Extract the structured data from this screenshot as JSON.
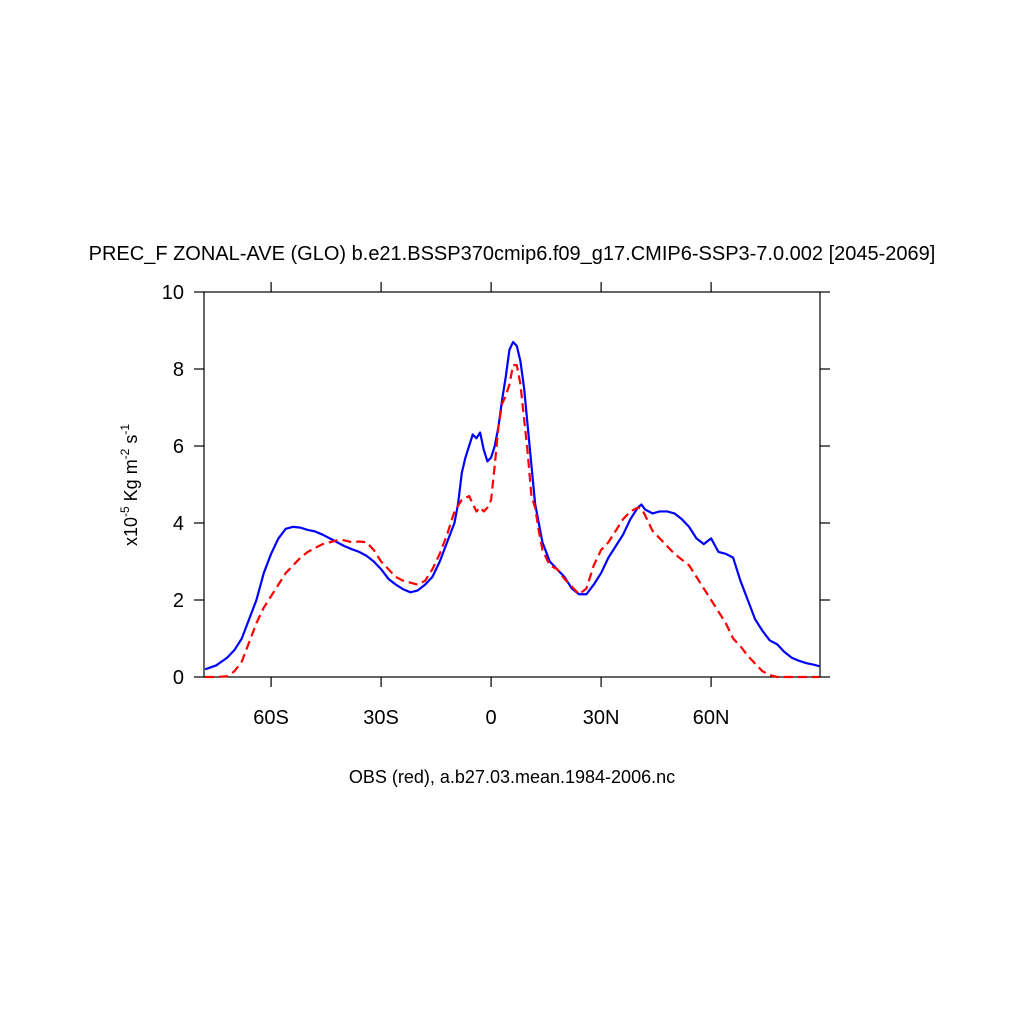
{
  "chart_data": {
    "type": "line",
    "title": "PREC_F ZONAL-AVE (GLO) b.e21.BSSP370cmip6.f09_g17.CMIP6-SSP3-7.0.002 [2045-2069]",
    "ylabel": [
      "x10",
      "-5",
      " Kg m",
      "-2",
      " s",
      "-1"
    ],
    "xlabel": "OBS (red), a.b27.03.mean.1984-2006.nc",
    "xlim": [
      -78.3,
      89.7
    ],
    "xticks": [
      {
        "value": -60,
        "label": "60S"
      },
      {
        "value": -30,
        "label": "30S"
      },
      0,
      {
        "value": 30,
        "label": "30N"
      },
      {
        "value": 60,
        "label": "60N"
      }
    ],
    "ylim": [
      0,
      10
    ],
    "yticks": [
      0,
      2,
      4,
      6,
      8,
      10
    ],
    "x": [
      -78,
      -75,
      -72,
      -70,
      -68,
      -66,
      -64,
      -62,
      -60,
      -58,
      -56,
      -54,
      -52,
      -50,
      -48,
      -46,
      -44,
      -42,
      -40,
      -38,
      -36,
      -34,
      -32,
      -30,
      -28,
      -26,
      -24,
      -22,
      -20,
      -18,
      -16,
      -14,
      -12,
      -10,
      -9,
      -8,
      -7,
      -6,
      -5,
      -4,
      -3,
      -2,
      -1,
      0,
      1,
      2,
      3,
      4,
      5,
      6,
      7,
      8,
      9,
      10,
      11,
      12,
      13,
      14,
      16,
      18,
      20,
      22,
      24,
      26,
      28,
      30,
      32,
      34,
      36,
      38,
      40,
      41,
      42,
      44,
      46,
      48,
      50,
      52,
      54,
      56,
      58,
      60,
      62,
      64,
      66,
      68,
      70,
      72,
      74,
      76,
      78,
      80,
      82,
      84,
      86,
      88,
      89.5
    ],
    "series": [
      {
        "color": "#0000ff",
        "dashed": false,
        "values": [
          0.2,
          0.3,
          0.5,
          0.7,
          1.0,
          1.5,
          2.0,
          2.7,
          3.2,
          3.6,
          3.85,
          3.9,
          3.88,
          3.82,
          3.78,
          3.7,
          3.6,
          3.5,
          3.4,
          3.32,
          3.25,
          3.15,
          3.0,
          2.8,
          2.55,
          2.4,
          2.28,
          2.2,
          2.25,
          2.4,
          2.6,
          3.0,
          3.5,
          4.0,
          4.5,
          5.3,
          5.7,
          6.0,
          6.3,
          6.2,
          6.35,
          5.9,
          5.6,
          5.7,
          6.0,
          6.5,
          7.2,
          7.8,
          8.5,
          8.7,
          8.6,
          8.2,
          7.5,
          6.5,
          5.5,
          4.5,
          4.0,
          3.5,
          3.0,
          2.8,
          2.6,
          2.3,
          2.15,
          2.15,
          2.4,
          2.7,
          3.1,
          3.4,
          3.7,
          4.1,
          4.4,
          4.48,
          4.35,
          4.25,
          4.3,
          4.3,
          4.25,
          4.1,
          3.9,
          3.6,
          3.45,
          3.6,
          3.25,
          3.2,
          3.1,
          2.5,
          2.0,
          1.5,
          1.2,
          0.95,
          0.85,
          0.65,
          0.5,
          0.42,
          0.36,
          0.32,
          0.28
        ]
      },
      {
        "color": "#ff0000",
        "dashed": true,
        "values": [
          0,
          0,
          0.02,
          0.15,
          0.4,
          0.9,
          1.4,
          1.8,
          2.1,
          2.4,
          2.7,
          2.9,
          3.1,
          3.25,
          3.35,
          3.45,
          3.5,
          3.55,
          3.55,
          3.5,
          3.52,
          3.5,
          3.3,
          3.0,
          2.8,
          2.6,
          2.5,
          2.45,
          2.4,
          2.5,
          2.8,
          3.2,
          3.7,
          4.3,
          4.45,
          4.6,
          4.65,
          4.7,
          4.5,
          4.3,
          4.4,
          4.3,
          4.4,
          4.6,
          5.5,
          6.5,
          7.1,
          7.3,
          7.6,
          8.1,
          8.1,
          7.6,
          6.7,
          5.8,
          4.7,
          4.4,
          3.8,
          3.3,
          2.9,
          2.8,
          2.55,
          2.35,
          2.15,
          2.3,
          2.9,
          3.3,
          3.5,
          3.8,
          4.1,
          4.3,
          4.4,
          4.38,
          4.2,
          3.8,
          3.6,
          3.4,
          3.2,
          3.05,
          2.9,
          2.6,
          2.3,
          2.0,
          1.7,
          1.4,
          1.0,
          0.8,
          0.55,
          0.35,
          0.15,
          0.05,
          0,
          0,
          0,
          0,
          0,
          0,
          0
        ]
      }
    ]
  }
}
